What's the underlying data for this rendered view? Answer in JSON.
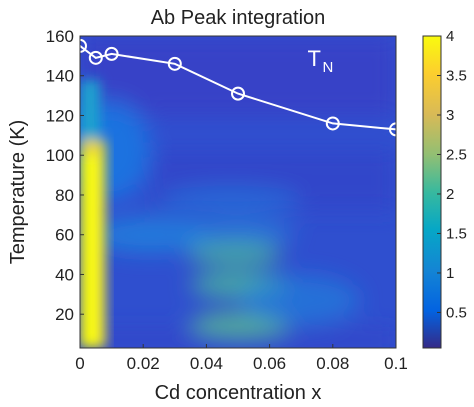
{
  "chart_data": {
    "type": "heatmap",
    "title": "Ab Peak integration",
    "xlabel": "Cd concentration x",
    "ylabel": "Temperature (K)",
    "xlim": [
      0,
      0.1
    ],
    "ylim": [
      3,
      160
    ],
    "x_ticks": [
      0,
      0.02,
      0.04,
      0.06,
      0.08,
      0.1
    ],
    "x_tick_labels": [
      "0",
      "0.02",
      "0.04",
      "0.06",
      "0.08",
      "0.1"
    ],
    "y_ticks": [
      20,
      40,
      60,
      80,
      100,
      120,
      140,
      160
    ],
    "y_tick_labels": [
      "20",
      "40",
      "60",
      "80",
      "100",
      "120",
      "140",
      "160"
    ],
    "colorbar": {
      "range": [
        0.05,
        4
      ],
      "ticks": [
        0.5,
        1,
        1.5,
        2,
        2.5,
        3,
        3.5,
        4
      ],
      "tick_labels": [
        "0.5",
        "1",
        "1.5",
        "2",
        "2.5",
        "3",
        "3.5",
        "4"
      ],
      "colormap": "parula"
    },
    "overlay_series": {
      "marker": "open-circle",
      "color": "#ffffff",
      "x": [
        0,
        0.005,
        0.01,
        0.03,
        0.05,
        0.08,
        0.1
      ],
      "y": [
        155,
        149,
        151,
        146,
        131,
        116,
        113
      ]
    },
    "annotation": {
      "main": "T",
      "sub": "N",
      "x": 0.072,
      "y": 145
    },
    "grid": false,
    "legend": "none"
  }
}
